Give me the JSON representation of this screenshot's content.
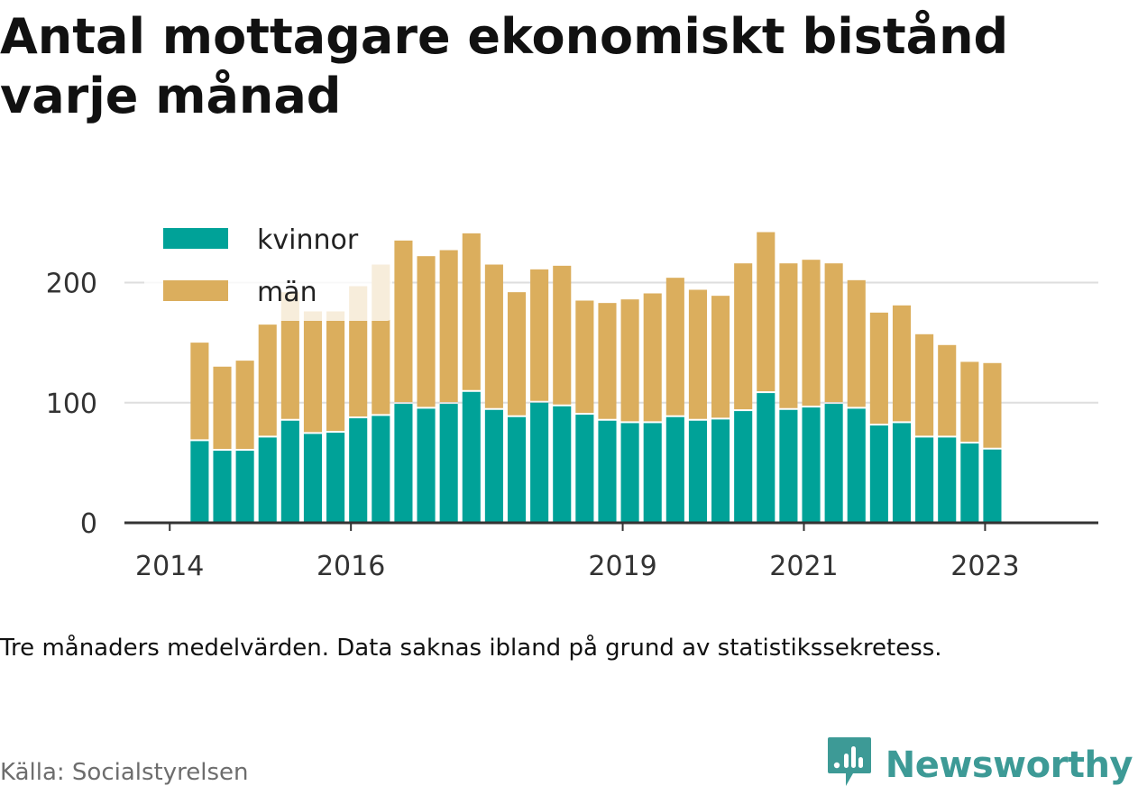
{
  "chart_data": {
    "type": "bar",
    "stacked": true,
    "title": "Antal mottagare ekonomiskt bistånd varje månad",
    "xlabel": "",
    "ylabel": "",
    "ylim": [
      0,
      250
    ],
    "yticks": [
      0,
      100,
      200
    ],
    "grid": true,
    "legend_position": "top-left",
    "x_tick_labels": [
      "2014",
      "2016",
      "2019",
      "2021",
      "2023"
    ],
    "x_tick_positions": [
      2014.0,
      2016.0,
      2019.0,
      2021.0,
      2023.0
    ],
    "x_range": [
      2013.5,
      2024.25
    ],
    "bar_width_years": 0.2,
    "x": [
      2014.33,
      2014.58,
      2014.83,
      2015.08,
      2015.33,
      2015.58,
      2015.83,
      2016.08,
      2016.33,
      2016.58,
      2016.83,
      2017.08,
      2017.33,
      2017.58,
      2017.83,
      2018.08,
      2018.33,
      2018.58,
      2018.83,
      2019.08,
      2019.33,
      2019.58,
      2019.83,
      2020.08,
      2020.33,
      2020.58,
      2020.83,
      2021.08,
      2021.33,
      2021.58,
      2021.83,
      2022.08,
      2022.33,
      2022.58,
      2022.83,
      2023.08
    ],
    "series": [
      {
        "name": "kvinnor",
        "color": "#00a298",
        "values": [
          68,
          60,
          60,
          71,
          85,
          74,
          75,
          87,
          89,
          99,
          95,
          99,
          109,
          94,
          88,
          100,
          97,
          90,
          85,
          83,
          83,
          88,
          85,
          86,
          93,
          108,
          94,
          96,
          99,
          95,
          81,
          83,
          71,
          71,
          66,
          61
        ]
      },
      {
        "name": "män",
        "color": "#dbae5d",
        "values": [
          82,
          70,
          75,
          94,
          107,
          102,
          101,
          110,
          126,
          136,
          127,
          128,
          132,
          121,
          104,
          111,
          117,
          95,
          98,
          103,
          108,
          116,
          109,
          103,
          123,
          134,
          122,
          123,
          117,
          107,
          94,
          98,
          86,
          77,
          68,
          72
        ]
      }
    ]
  },
  "caption": "Tre månaders medelvärden. Data saknas ibland på grund av statistikssekretess.",
  "source": "Källa: Socialstyrelsen",
  "brand": {
    "name": "Newsworthy",
    "icon": "newsworthy-logo-icon",
    "color": "#3d9a96"
  },
  "colors": {
    "axis": "#333333",
    "grid": "#dedede",
    "text": "#111111"
  }
}
